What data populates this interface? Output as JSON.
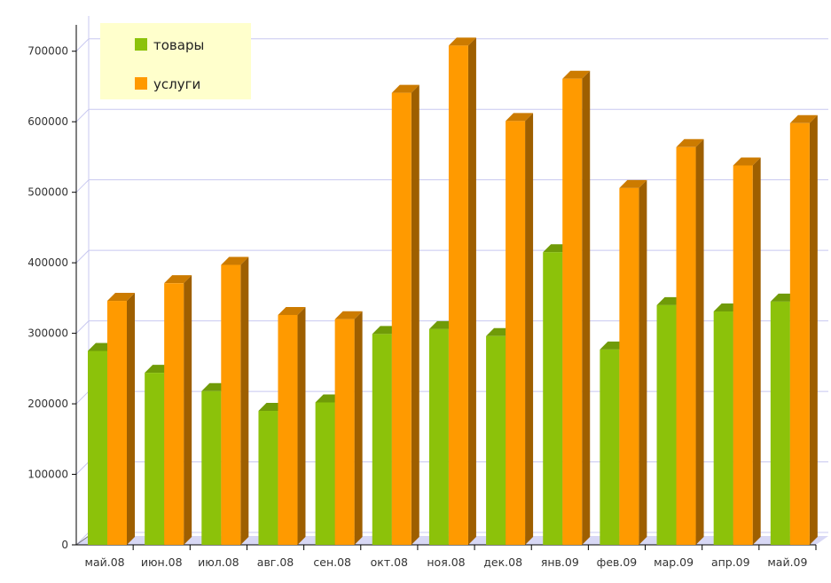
{
  "chart_data": {
    "type": "bar",
    "categories": [
      "май.08",
      "июн.08",
      "июл.08",
      "авг.08",
      "сен.08",
      "окт.08",
      "ноя.08",
      "дек.08",
      "янв.09",
      "фев.09",
      "мар.09",
      "апр.09",
      "май.09"
    ],
    "series": [
      {
        "name": "товары",
        "color": "#8cc20a",
        "values": [
          275000,
          244000,
          218000,
          190000,
          202000,
          299000,
          306000,
          296000,
          415000,
          277000,
          340000,
          331000,
          345000
        ]
      },
      {
        "name": "услуги",
        "color": "#ff9a00",
        "values": [
          346000,
          371000,
          397000,
          326000,
          320000,
          641000,
          708000,
          601000,
          661000,
          506000,
          564000,
          538000,
          598000
        ]
      }
    ],
    "ylim": [
      0,
      750000
    ],
    "yticks": [
      0,
      100000,
      200000,
      300000,
      400000,
      500000,
      600000,
      700000
    ],
    "ytick_labels": [
      "0",
      "100000",
      "200000",
      "300000",
      "400000",
      "500000",
      "600000",
      "700000"
    ],
    "grid": true,
    "legend": "top-left",
    "legend_background": "#ffffcc",
    "gridline_color": "#c8c8f0"
  }
}
